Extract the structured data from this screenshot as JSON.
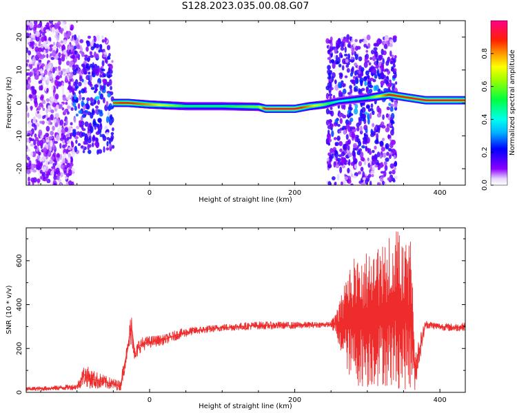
{
  "figure_title": "S128.2023.035.00.08.G07",
  "colors": {
    "snr_line": "#ee2c2c",
    "axis": "#000000",
    "spectrum_low": "#8a00ff",
    "spectrum_high": "#ff0033"
  },
  "chart_data": [
    {
      "type": "heatmap",
      "title": "",
      "xlabel": "Height of straight line (km)",
      "ylabel": "Frequency (Hz)",
      "xlim": [
        -170,
        435
      ],
      "ylim": [
        -25,
        25
      ],
      "xticks": [
        0,
        200,
        400
      ],
      "yticks": [
        -20,
        -10,
        0,
        10,
        20
      ],
      "colorbar": {
        "label": "Normalized spectral amplitude",
        "range": [
          0.0,
          1.0
        ],
        "ticks": [
          "0.0",
          "0.2",
          "0.4",
          "0.6",
          "0.8"
        ],
        "colormap": "rainbow (violet → blue → cyan → green → yellow → red → magenta)"
      },
      "ridge_frequency_track": {
        "x_km": [
          -50,
          -30,
          0,
          50,
          100,
          150,
          160,
          200,
          220,
          240,
          260,
          300,
          330,
          350,
          380,
          410,
          435
        ],
        "freq_hz": [
          0.0,
          0.0,
          -0.5,
          -1.0,
          -1.0,
          -1.2,
          -1.8,
          -1.8,
          -1.0,
          -0.5,
          0.5,
          1.5,
          2.5,
          1.8,
          0.8,
          0.8,
          0.8
        ],
        "peak_amplitude": [
          0.85,
          0.9,
          0.8,
          0.5,
          0.5,
          0.6,
          0.95,
          0.95,
          0.8,
          0.6,
          0.4,
          0.5,
          0.9,
          0.9,
          0.95,
          0.95,
          0.9
        ]
      },
      "noise_regions": [
        {
          "x_range": [
            -170,
            -105
          ],
          "freq_range": [
            -25,
            25
          ],
          "level": "low, scattered"
        },
        {
          "x_range": [
            -105,
            -50
          ],
          "freq_range": [
            -15,
            20
          ],
          "level": "medium, scattered"
        },
        {
          "x_range": [
            245,
            340
          ],
          "freq_range": [
            -25,
            20
          ],
          "level": "medium, scattered"
        }
      ]
    },
    {
      "type": "line",
      "title": "",
      "xlabel": "Height of straight line (km)",
      "ylabel": "SNR (10 * v/v)",
      "xlim": [
        -170,
        435
      ],
      "ylim": [
        0,
        750
      ],
      "xticks": [
        0,
        200,
        400
      ],
      "yticks": [
        0,
        200,
        400,
        600
      ],
      "grid": false,
      "series": [
        {
          "color": "#ee2c2c",
          "x": [
            -170,
            -140,
            -100,
            -90,
            -80,
            -60,
            -40,
            -35,
            -30,
            -25,
            -20,
            -15,
            -10,
            0,
            20,
            40,
            60,
            100,
            150,
            200,
            250,
            280,
            300,
            320,
            340,
            360,
            365,
            380,
            400,
            420,
            435
          ],
          "y": [
            15,
            18,
            25,
            80,
            60,
            45,
            30,
            120,
            200,
            310,
            160,
            210,
            220,
            230,
            240,
            265,
            280,
            295,
            305,
            305,
            310,
            310,
            300,
            310,
            350,
            300,
            100,
            310,
            300,
            295,
            300
          ],
          "envelope_upper": [
            25,
            30,
            40,
            130,
            120,
            80,
            60,
            150,
            220,
            320,
            200,
            240,
            250,
            260,
            270,
            290,
            300,
            315,
            325,
            325,
            320,
            620,
            650,
            680,
            740,
            690,
            320,
            320,
            310,
            310,
            310
          ],
          "envelope_lower": [
            5,
            8,
            10,
            20,
            20,
            15,
            10,
            60,
            150,
            120,
            130,
            160,
            180,
            200,
            220,
            240,
            260,
            280,
            285,
            290,
            295,
            30,
            20,
            30,
            15,
            10,
            90,
            280,
            275,
            270,
            270
          ]
        }
      ]
    }
  ]
}
